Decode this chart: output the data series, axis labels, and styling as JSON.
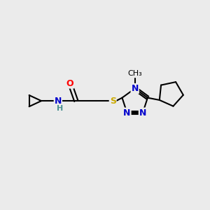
{
  "bg_color": "#ebebeb",
  "bond_color": "#000000",
  "atom_colors": {
    "O": "#ff0000",
    "N": "#0000cc",
    "S": "#ccaa00",
    "H": "#4a9090",
    "C": "#000000"
  },
  "figsize": [
    3.0,
    3.0
  ],
  "dpi": 100
}
